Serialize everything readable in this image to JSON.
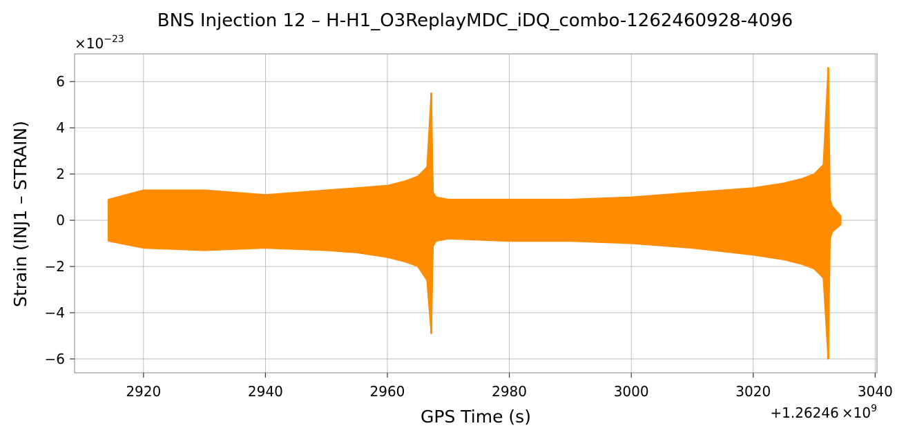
{
  "chart_data": {
    "type": "line",
    "title": "BNS Injection 12 – H-H1_O3ReplayMDC_iDQ_combo-1262460928-4096",
    "xlabel": "GPS Time (s)",
    "ylabel": "Strain (INJ1 – STRAIN)",
    "x_offset_label_prefix": "+1.26246",
    "x_offset_label_mult": "×10",
    "x_offset_label_exp": "9",
    "y_scale_label_prefix": "×10",
    "y_scale_label_exp": "−23",
    "xlim": [
      2908.7,
      3040.3
    ],
    "ylim": [
      -6.6,
      7.2
    ],
    "x_ticks": [
      2920,
      2940,
      2960,
      2980,
      3000,
      3020,
      3040
    ],
    "x_tick_labels": [
      "2920",
      "2940",
      "2960",
      "2980",
      "3000",
      "3020",
      "3040"
    ],
    "y_ticks": [
      -6,
      -4,
      -2,
      0,
      2,
      4,
      6
    ],
    "y_tick_labels": [
      "−6",
      "−4",
      "−2",
      "0",
      "2",
      "4",
      "6"
    ],
    "grid": true,
    "color": "#ff8c00",
    "series": [
      {
        "x": [
          2914.3,
          2920,
          2930,
          2940,
          2950,
          2955,
          2960,
          2963,
          2965,
          2966.5,
          2967.2,
          2967.5,
          2968,
          2970,
          2980,
          2990,
          3000,
          3010,
          3020,
          3025,
          3028,
          3030,
          3031.5,
          3032.3,
          3032.6,
          3033,
          3034.3
        ],
        "y_upper": [
          0.9,
          1.3,
          1.3,
          1.1,
          1.3,
          1.4,
          1.5,
          1.7,
          1.9,
          2.3,
          5.5,
          1.2,
          1.0,
          0.9,
          0.9,
          0.9,
          1.0,
          1.2,
          1.4,
          1.6,
          1.8,
          2.0,
          2.4,
          6.6,
          0.9,
          0.6,
          0.2
        ],
        "y_lower": [
          -0.9,
          -1.2,
          -1.3,
          -1.2,
          -1.3,
          -1.4,
          -1.6,
          -1.8,
          -2.0,
          -2.6,
          -4.9,
          -1.1,
          -0.9,
          -0.8,
          -0.9,
          -0.9,
          -1.0,
          -1.2,
          -1.5,
          -1.7,
          -1.9,
          -2.1,
          -2.5,
          -6.0,
          -0.8,
          -0.5,
          -0.2
        ]
      }
    ]
  }
}
